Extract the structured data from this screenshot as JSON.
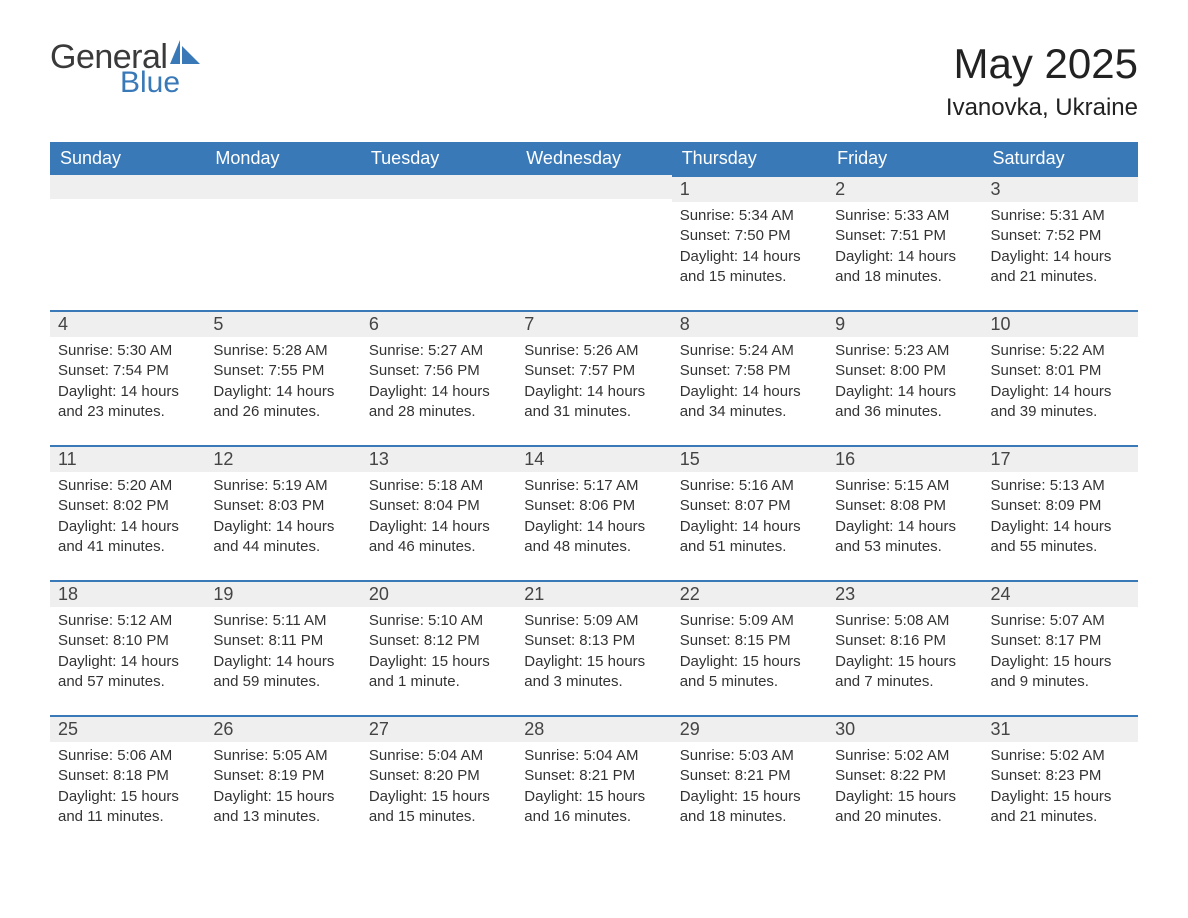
{
  "logo": {
    "word1": "General",
    "word2": "Blue"
  },
  "title": "May 2025",
  "location": "Ivanovka, Ukraine",
  "colors": {
    "header_bg": "#3a79b7",
    "header_text": "#ffffff",
    "daynum_bg": "#efefef",
    "daynum_border": "#3a79b7",
    "body_text": "#333333",
    "page_bg": "#ffffff",
    "logo_gray": "#3a3a3a",
    "logo_blue": "#3a79b7"
  },
  "fonts": {
    "title_size": 42,
    "location_size": 24,
    "dayheader_size": 18,
    "daynum_size": 18,
    "body_size": 15
  },
  "weekdays": [
    "Sunday",
    "Monday",
    "Tuesday",
    "Wednesday",
    "Thursday",
    "Friday",
    "Saturday"
  ],
  "weeks": [
    [
      null,
      null,
      null,
      null,
      {
        "n": "1",
        "sunrise": "Sunrise: 5:34 AM",
        "sunset": "Sunset: 7:50 PM",
        "day1": "Daylight: 14 hours",
        "day2": "and 15 minutes."
      },
      {
        "n": "2",
        "sunrise": "Sunrise: 5:33 AM",
        "sunset": "Sunset: 7:51 PM",
        "day1": "Daylight: 14 hours",
        "day2": "and 18 minutes."
      },
      {
        "n": "3",
        "sunrise": "Sunrise: 5:31 AM",
        "sunset": "Sunset: 7:52 PM",
        "day1": "Daylight: 14 hours",
        "day2": "and 21 minutes."
      }
    ],
    [
      {
        "n": "4",
        "sunrise": "Sunrise: 5:30 AM",
        "sunset": "Sunset: 7:54 PM",
        "day1": "Daylight: 14 hours",
        "day2": "and 23 minutes."
      },
      {
        "n": "5",
        "sunrise": "Sunrise: 5:28 AM",
        "sunset": "Sunset: 7:55 PM",
        "day1": "Daylight: 14 hours",
        "day2": "and 26 minutes."
      },
      {
        "n": "6",
        "sunrise": "Sunrise: 5:27 AM",
        "sunset": "Sunset: 7:56 PM",
        "day1": "Daylight: 14 hours",
        "day2": "and 28 minutes."
      },
      {
        "n": "7",
        "sunrise": "Sunrise: 5:26 AM",
        "sunset": "Sunset: 7:57 PM",
        "day1": "Daylight: 14 hours",
        "day2": "and 31 minutes."
      },
      {
        "n": "8",
        "sunrise": "Sunrise: 5:24 AM",
        "sunset": "Sunset: 7:58 PM",
        "day1": "Daylight: 14 hours",
        "day2": "and 34 minutes."
      },
      {
        "n": "9",
        "sunrise": "Sunrise: 5:23 AM",
        "sunset": "Sunset: 8:00 PM",
        "day1": "Daylight: 14 hours",
        "day2": "and 36 minutes."
      },
      {
        "n": "10",
        "sunrise": "Sunrise: 5:22 AM",
        "sunset": "Sunset: 8:01 PM",
        "day1": "Daylight: 14 hours",
        "day2": "and 39 minutes."
      }
    ],
    [
      {
        "n": "11",
        "sunrise": "Sunrise: 5:20 AM",
        "sunset": "Sunset: 8:02 PM",
        "day1": "Daylight: 14 hours",
        "day2": "and 41 minutes."
      },
      {
        "n": "12",
        "sunrise": "Sunrise: 5:19 AM",
        "sunset": "Sunset: 8:03 PM",
        "day1": "Daylight: 14 hours",
        "day2": "and 44 minutes."
      },
      {
        "n": "13",
        "sunrise": "Sunrise: 5:18 AM",
        "sunset": "Sunset: 8:04 PM",
        "day1": "Daylight: 14 hours",
        "day2": "and 46 minutes."
      },
      {
        "n": "14",
        "sunrise": "Sunrise: 5:17 AM",
        "sunset": "Sunset: 8:06 PM",
        "day1": "Daylight: 14 hours",
        "day2": "and 48 minutes."
      },
      {
        "n": "15",
        "sunrise": "Sunrise: 5:16 AM",
        "sunset": "Sunset: 8:07 PM",
        "day1": "Daylight: 14 hours",
        "day2": "and 51 minutes."
      },
      {
        "n": "16",
        "sunrise": "Sunrise: 5:15 AM",
        "sunset": "Sunset: 8:08 PM",
        "day1": "Daylight: 14 hours",
        "day2": "and 53 minutes."
      },
      {
        "n": "17",
        "sunrise": "Sunrise: 5:13 AM",
        "sunset": "Sunset: 8:09 PM",
        "day1": "Daylight: 14 hours",
        "day2": "and 55 minutes."
      }
    ],
    [
      {
        "n": "18",
        "sunrise": "Sunrise: 5:12 AM",
        "sunset": "Sunset: 8:10 PM",
        "day1": "Daylight: 14 hours",
        "day2": "and 57 minutes."
      },
      {
        "n": "19",
        "sunrise": "Sunrise: 5:11 AM",
        "sunset": "Sunset: 8:11 PM",
        "day1": "Daylight: 14 hours",
        "day2": "and 59 minutes."
      },
      {
        "n": "20",
        "sunrise": "Sunrise: 5:10 AM",
        "sunset": "Sunset: 8:12 PM",
        "day1": "Daylight: 15 hours",
        "day2": "and 1 minute."
      },
      {
        "n": "21",
        "sunrise": "Sunrise: 5:09 AM",
        "sunset": "Sunset: 8:13 PM",
        "day1": "Daylight: 15 hours",
        "day2": "and 3 minutes."
      },
      {
        "n": "22",
        "sunrise": "Sunrise: 5:09 AM",
        "sunset": "Sunset: 8:15 PM",
        "day1": "Daylight: 15 hours",
        "day2": "and 5 minutes."
      },
      {
        "n": "23",
        "sunrise": "Sunrise: 5:08 AM",
        "sunset": "Sunset: 8:16 PM",
        "day1": "Daylight: 15 hours",
        "day2": "and 7 minutes."
      },
      {
        "n": "24",
        "sunrise": "Sunrise: 5:07 AM",
        "sunset": "Sunset: 8:17 PM",
        "day1": "Daylight: 15 hours",
        "day2": "and 9 minutes."
      }
    ],
    [
      {
        "n": "25",
        "sunrise": "Sunrise: 5:06 AM",
        "sunset": "Sunset: 8:18 PM",
        "day1": "Daylight: 15 hours",
        "day2": "and 11 minutes."
      },
      {
        "n": "26",
        "sunrise": "Sunrise: 5:05 AM",
        "sunset": "Sunset: 8:19 PM",
        "day1": "Daylight: 15 hours",
        "day2": "and 13 minutes."
      },
      {
        "n": "27",
        "sunrise": "Sunrise: 5:04 AM",
        "sunset": "Sunset: 8:20 PM",
        "day1": "Daylight: 15 hours",
        "day2": "and 15 minutes."
      },
      {
        "n": "28",
        "sunrise": "Sunrise: 5:04 AM",
        "sunset": "Sunset: 8:21 PM",
        "day1": "Daylight: 15 hours",
        "day2": "and 16 minutes."
      },
      {
        "n": "29",
        "sunrise": "Sunrise: 5:03 AM",
        "sunset": "Sunset: 8:21 PM",
        "day1": "Daylight: 15 hours",
        "day2": "and 18 minutes."
      },
      {
        "n": "30",
        "sunrise": "Sunrise: 5:02 AM",
        "sunset": "Sunset: 8:22 PM",
        "day1": "Daylight: 15 hours",
        "day2": "and 20 minutes."
      },
      {
        "n": "31",
        "sunrise": "Sunrise: 5:02 AM",
        "sunset": "Sunset: 8:23 PM",
        "day1": "Daylight: 15 hours",
        "day2": "and 21 minutes."
      }
    ]
  ]
}
